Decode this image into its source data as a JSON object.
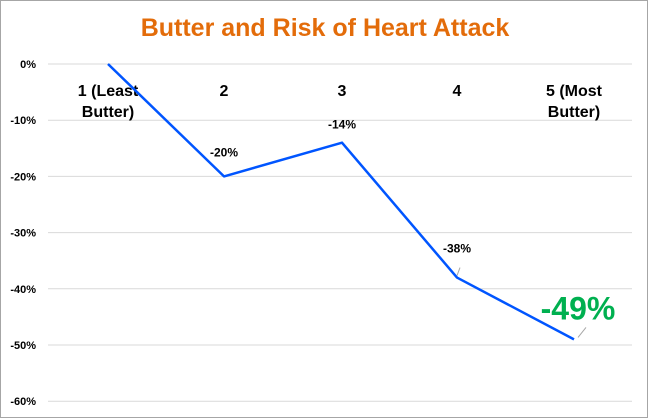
{
  "chart_data": {
    "type": "line",
    "title": "Butter and Risk of Heart Attack",
    "categories": [
      [
        "1 (Least",
        "Butter)"
      ],
      [
        "2"
      ],
      [
        "3"
      ],
      [
        "4"
      ],
      [
        "5 (Most",
        "Butter)"
      ]
    ],
    "series": [
      {
        "values": [
          0,
          -20,
          -14,
          -38,
          -49
        ]
      }
    ],
    "data_labels": [
      "",
      "-20%",
      "-14%",
      "-38%",
      "-49%"
    ],
    "y_ticks": [
      "0%",
      "-10%",
      "-20%",
      "-30%",
      "-40%",
      "-50%",
      "-60%"
    ],
    "ylim": [
      -60,
      0
    ],
    "grid": true,
    "legend": "none",
    "colors": {
      "title": "#e36c0a",
      "line": "#0055ff",
      "gridline": "#d9d9d9",
      "highlight_label": "#00b050"
    }
  }
}
